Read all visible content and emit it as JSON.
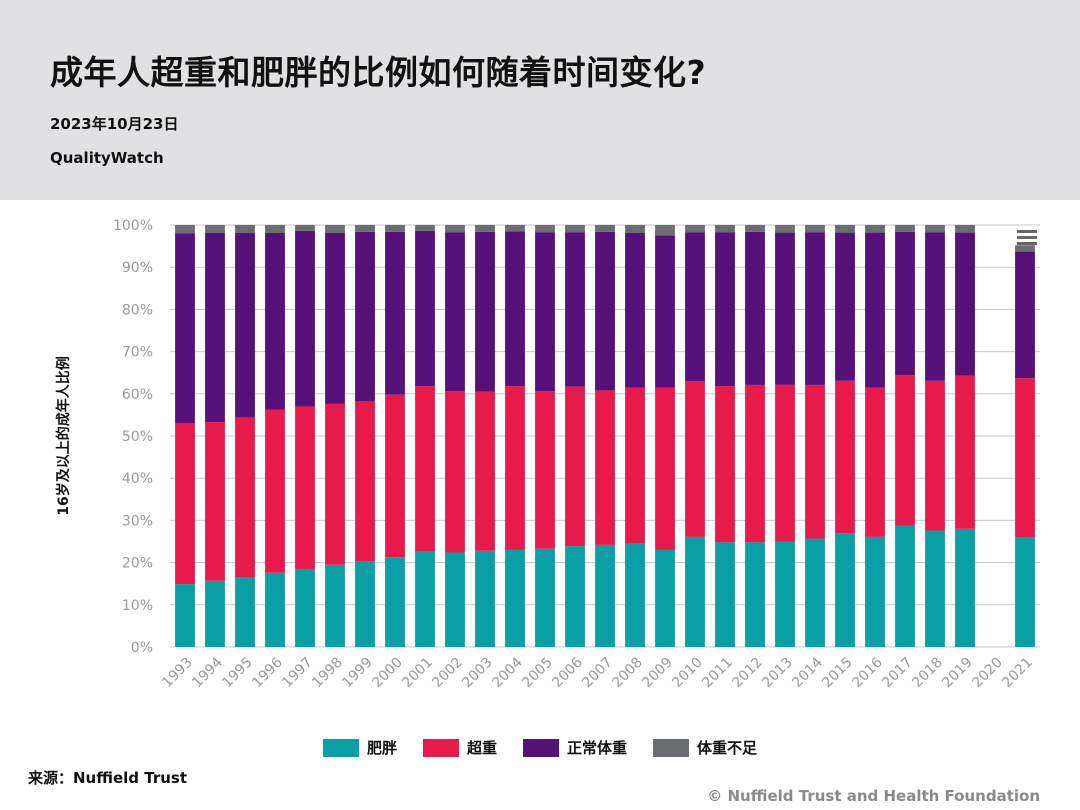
{
  "header": {
    "title": "成年人超重和肥胖的比例如何随着时间变化?",
    "date": "2023年10月23日",
    "brand": "QualityWatch"
  },
  "footer": {
    "source": "来源：Nuffield Trust",
    "copyright": "© Nuffield Trust and Health Foundation"
  },
  "chart_data": {
    "type": "bar",
    "stacked": true,
    "ylabel": "16岁及以上的成年人比例",
    "ylim": [
      0,
      100
    ],
    "yticks": [
      0,
      10,
      20,
      30,
      40,
      50,
      60,
      70,
      80,
      90,
      100
    ],
    "ytick_suffix": "%",
    "grid": true,
    "legend_position": "bottom",
    "categories": [
      "1993",
      "1994",
      "1995",
      "1996",
      "1997",
      "1998",
      "1999",
      "2000",
      "2001",
      "2002",
      "2003",
      "2004",
      "2005",
      "2006",
      "2007",
      "2008",
      "2009",
      "2010",
      "2011",
      "2012",
      "2013",
      "2014",
      "2015",
      "2016",
      "2017",
      "2018",
      "2019",
      "2020",
      "2021"
    ],
    "series": [
      {
        "name": "肥胖",
        "color": "#0a9ea6",
        "values": [
          14.9,
          15.7,
          16.4,
          17.6,
          18.5,
          19.5,
          20.2,
          21.3,
          22.6,
          22.4,
          22.8,
          23.0,
          23.3,
          23.9,
          24.2,
          24.5,
          23.0,
          26.1,
          24.8,
          24.8,
          25.0,
          25.7,
          27.0,
          26.1,
          28.8,
          27.6,
          28.0,
          null,
          25.9
        ]
      },
      {
        "name": "超重",
        "color": "#e8194b",
        "values": [
          38.1,
          37.6,
          38.0,
          38.6,
          38.5,
          38.1,
          38.0,
          38.5,
          39.2,
          38.2,
          37.7,
          38.8,
          37.3,
          37.8,
          36.6,
          37.0,
          38.5,
          36.9,
          37.0,
          37.3,
          37.2,
          36.4,
          36.1,
          35.4,
          35.6,
          35.5,
          36.3,
          null,
          37.8
        ]
      },
      {
        "name": "正常体重",
        "color": "#55107a",
        "values": [
          45.0,
          44.8,
          43.7,
          41.9,
          41.6,
          40.5,
          40.2,
          38.6,
          36.8,
          37.7,
          37.9,
          36.7,
          37.7,
          36.6,
          37.6,
          36.6,
          36.0,
          35.3,
          36.5,
          36.3,
          36.0,
          36.2,
          35.1,
          36.7,
          34.0,
          35.2,
          33.9,
          null,
          30.0
        ]
      },
      {
        "name": "体重不足",
        "color": "#6b6d70",
        "values": [
          2.0,
          1.9,
          1.9,
          1.9,
          1.4,
          1.9,
          1.6,
          1.6,
          1.4,
          1.7,
          1.6,
          1.5,
          1.7,
          1.7,
          1.6,
          1.9,
          2.5,
          1.7,
          1.7,
          1.6,
          1.8,
          1.7,
          1.8,
          1.8,
          1.6,
          1.7,
          1.8,
          null,
          1.5
        ]
      }
    ],
    "options_icon": "menu-icon"
  }
}
